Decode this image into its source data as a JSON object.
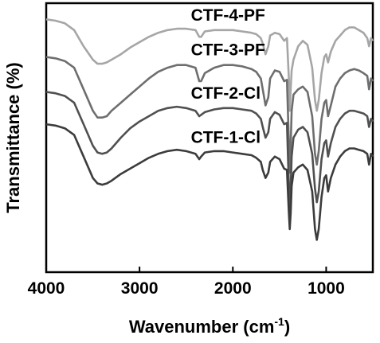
{
  "chart_data": {
    "type": "line",
    "xlabel": "Wavenumber (cm",
    "xlabel_sup": "-1",
    "xlabel_close": ")",
    "ylabel": "Transmittance (%)",
    "xlim": [
      4000,
      500
    ],
    "x_ticks": [
      4000,
      3000,
      2000,
      1000
    ],
    "x_tick_labels": [
      "4000",
      "3000",
      "2000",
      "1000"
    ],
    "y_ticks_visible": false,
    "grid": false,
    "colors": {
      "CTF-4-PF": "#a6a6a6",
      "CTF-3-PF": "#6e6e6e",
      "CTF-2-Cl": "#505050",
      "CTF-1-Cl": "#3c3c3c"
    },
    "series": [
      {
        "name": "CTF-4-PF",
        "x": [
          4000,
          3900,
          3800,
          3700,
          3600,
          3500,
          3450,
          3400,
          3350,
          3300,
          3200,
          3100,
          3000,
          2900,
          2800,
          2700,
          2600,
          2500,
          2400,
          2360,
          2340,
          2300,
          2200,
          2100,
          2000,
          1900,
          1800,
          1750,
          1700,
          1680,
          1650,
          1620,
          1600,
          1550,
          1500,
          1450,
          1420,
          1400,
          1390,
          1380,
          1370,
          1350,
          1300,
          1250,
          1200,
          1150,
          1120,
          1100,
          1080,
          1050,
          1020,
          1000,
          980,
          950,
          900,
          850,
          800,
          750,
          700,
          650,
          600,
          560,
          540,
          520,
          500
        ],
        "y": [
          94,
          93.5,
          92.5,
          90,
          84,
          79,
          77.5,
          77.5,
          78,
          79,
          81,
          83.5,
          85.5,
          87.5,
          89,
          90,
          90.5,
          90.5,
          90,
          87.5,
          87.5,
          89.5,
          90,
          90,
          90,
          89.5,
          89,
          88.5,
          87,
          85,
          81,
          84,
          88,
          89,
          88.5,
          86,
          87,
          72,
          60,
          68,
          75,
          79,
          84,
          86,
          84.5,
          76,
          64,
          60,
          64,
          74,
          80,
          81,
          78,
          82,
          86,
          88,
          90,
          91,
          91,
          90,
          89,
          87,
          84,
          87,
          86
        ]
      },
      {
        "name": "CTF-3-PF",
        "x": [
          4000,
          3900,
          3800,
          3700,
          3600,
          3500,
          3450,
          3400,
          3350,
          3300,
          3200,
          3100,
          3000,
          2900,
          2800,
          2700,
          2600,
          2500,
          2400,
          2360,
          2340,
          2300,
          2200,
          2100,
          2000,
          1900,
          1800,
          1750,
          1700,
          1680,
          1650,
          1620,
          1600,
          1550,
          1500,
          1450,
          1420,
          1400,
          1390,
          1380,
          1370,
          1350,
          1300,
          1250,
          1200,
          1150,
          1120,
          1100,
          1080,
          1050,
          1020,
          1000,
          980,
          950,
          900,
          850,
          800,
          750,
          700,
          650,
          600,
          560,
          540,
          520,
          500
        ],
        "y": [
          80,
          79.5,
          78.5,
          76,
          68,
          60,
          57.5,
          57.5,
          58,
          60,
          63,
          66,
          69,
          72,
          74.5,
          76,
          77,
          77,
          76,
          71,
          71,
          74,
          76,
          77,
          77,
          76.5,
          75.5,
          74.5,
          72,
          68,
          62,
          65,
          72,
          75,
          74.5,
          71,
          71.5,
          48,
          37,
          47,
          60,
          66,
          68,
          69,
          67,
          58,
          44,
          40,
          45,
          57,
          63,
          64,
          58,
          62,
          69,
          72,
          74,
          75,
          75.5,
          75,
          74,
          73,
          68,
          72,
          71
        ]
      },
      {
        "name": "CTF-2-Cl",
        "x": [
          4000,
          3900,
          3800,
          3700,
          3600,
          3500,
          3450,
          3400,
          3350,
          3300,
          3200,
          3100,
          3000,
          2900,
          2800,
          2700,
          2600,
          2500,
          2400,
          2360,
          2340,
          2300,
          2200,
          2100,
          2000,
          1900,
          1800,
          1750,
          1700,
          1680,
          1650,
          1620,
          1600,
          1550,
          1500,
          1450,
          1420,
          1400,
          1390,
          1380,
          1370,
          1350,
          1300,
          1250,
          1200,
          1150,
          1120,
          1100,
          1080,
          1050,
          1020,
          1000,
          980,
          950,
          900,
          850,
          800,
          750,
          700,
          650,
          600,
          560,
          540,
          520,
          500
        ],
        "y": [
          67,
          66.5,
          65.5,
          63,
          55,
          47,
          44.5,
          44,
          44.5,
          46,
          50,
          53.5,
          56,
          58,
          60,
          61,
          61.5,
          61,
          60,
          58,
          58.5,
          59.5,
          60.5,
          61,
          61,
          60.5,
          60,
          59,
          57,
          54,
          50,
          52,
          57,
          59.5,
          58.5,
          55,
          55.5,
          32,
          24,
          31,
          43,
          50,
          53,
          54,
          52,
          44,
          31,
          26,
          30,
          42,
          48,
          49,
          43,
          48,
          54,
          57,
          59,
          60,
          60,
          59.5,
          59,
          58,
          54,
          57,
          56
        ]
      },
      {
        "name": "CTF-1-Cl",
        "x": [
          4000,
          3900,
          3800,
          3700,
          3600,
          3500,
          3450,
          3400,
          3350,
          3300,
          3200,
          3100,
          3000,
          2900,
          2800,
          2700,
          2600,
          2500,
          2400,
          2360,
          2340,
          2300,
          2200,
          2100,
          2000,
          1900,
          1800,
          1750,
          1700,
          1680,
          1650,
          1620,
          1600,
          1550,
          1500,
          1450,
          1420,
          1400,
          1390,
          1380,
          1370,
          1350,
          1300,
          1250,
          1200,
          1150,
          1120,
          1100,
          1080,
          1050,
          1020,
          1000,
          980,
          950,
          900,
          850,
          800,
          750,
          700,
          650,
          600,
          560,
          540,
          520,
          500
        ],
        "y": [
          55,
          54.5,
          53.5,
          51,
          43,
          35,
          33,
          32.5,
          33,
          34,
          36.5,
          38.5,
          40.5,
          42.5,
          44,
          45,
          45.5,
          45,
          44,
          42,
          43,
          44.5,
          45,
          45,
          44.5,
          44,
          43.5,
          42.5,
          41,
          38,
          35,
          37,
          41,
          43,
          42,
          38.5,
          38,
          22,
          16,
          22,
          32,
          37,
          39,
          40,
          38,
          30,
          16,
          12,
          16,
          28,
          35,
          36,
          30,
          35,
          40,
          43,
          45,
          46,
          46,
          45.5,
          45,
          44,
          40,
          44,
          43
        ]
      }
    ]
  }
}
